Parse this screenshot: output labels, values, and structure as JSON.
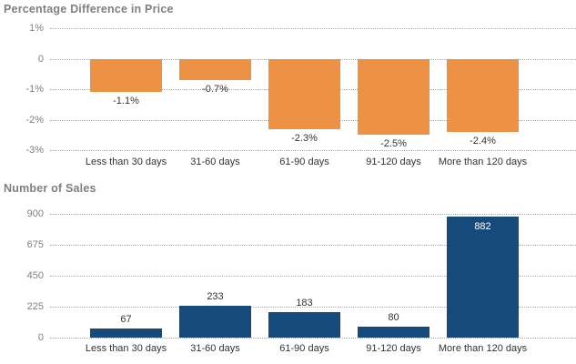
{
  "colors": {
    "background": "#ffffff",
    "title_text": "#7f7f7f",
    "tick_text": "#808080",
    "value_text": "#333333",
    "value_text_inside_bar": "#ffffff",
    "category_text": "#333333",
    "gridline": "#ababab",
    "bar_orange": "#ED9244",
    "bar_blue": "#174A7C"
  },
  "chart_data": [
    {
      "type": "bar",
      "title": "Percentage Difference in Price",
      "categories": [
        "Less than 30 days",
        "31-60 days",
        "61-90 days",
        "91-120 days",
        "More than 120 days"
      ],
      "values": [
        -1.1,
        -0.7,
        -2.3,
        -2.5,
        -2.4
      ],
      "value_labels": [
        "-1.1%",
        "-0.7%",
        "-2.3%",
        "-2.5%",
        "-2.4%"
      ],
      "ytick_labels": [
        "1%",
        "0",
        "-1%",
        "-2%",
        "-3%"
      ],
      "yticks": [
        1,
        0,
        -1,
        -2,
        -3
      ],
      "ylim": [
        -3,
        1
      ],
      "xlabel": "",
      "ylabel": "",
      "grid": "horizontal-dotted",
      "legend": "none",
      "bar_color": "#ED9244"
    },
    {
      "type": "bar",
      "title": "Number of Sales",
      "categories": [
        "Less than 30 days",
        "31-60 days",
        "61-90 days",
        "91-120 days",
        "More than 120 days"
      ],
      "values": [
        67,
        233,
        183,
        80,
        882
      ],
      "value_labels": [
        "67",
        "233",
        "183",
        "80",
        "882"
      ],
      "ytick_labels": [
        "900",
        "675",
        "450",
        "225",
        "0"
      ],
      "yticks": [
        900,
        675,
        450,
        225,
        0
      ],
      "ylim": [
        0,
        900
      ],
      "xlabel": "",
      "ylabel": "",
      "grid": "horizontal-dotted",
      "legend": "none",
      "bar_color": "#174A7C"
    }
  ]
}
